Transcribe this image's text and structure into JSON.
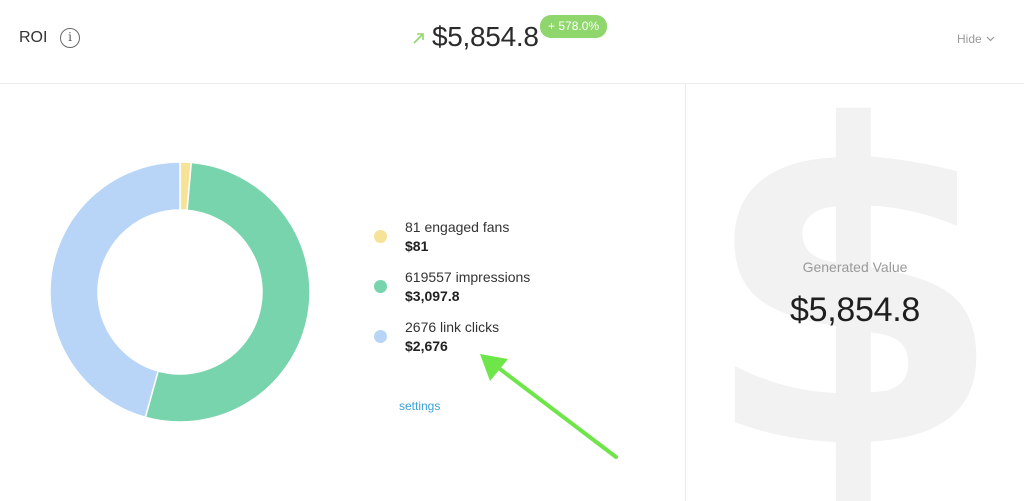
{
  "header": {
    "title": "ROI",
    "info_icon": "info-icon",
    "trend_icon": "arrow-up-right-icon",
    "total_value": "$5,854.8",
    "growth_badge": "+ 578.0%",
    "hide_label": "Hide"
  },
  "breakdown": {
    "items": [
      {
        "label": "81 engaged fans",
        "value": "$81",
        "amount": 81,
        "color": "#f7e397"
      },
      {
        "label": "619557 impressions",
        "value": "$3,097.8",
        "amount": 3097.8,
        "color": "#78d4ad"
      },
      {
        "label": "2676 link clicks",
        "value": "$2,676",
        "amount": 2676,
        "color": "#b8d5f8"
      }
    ],
    "settings_label": "settings"
  },
  "generated": {
    "label": "Generated Value",
    "value": "$5,854.8",
    "watermark_icon": "dollar-icon",
    "watermark_glyph": "$"
  },
  "chart_data": {
    "type": "pie",
    "categories": [
      "81 engaged fans",
      "619557 impressions",
      "2676 link clicks"
    ],
    "values": [
      81,
      3097.8,
      2676
    ],
    "donut": true
  },
  "colors": {
    "accent_green": "#8fd66d",
    "link_blue": "#3aa0d8",
    "annotation_arrow": "#6ee64a"
  }
}
